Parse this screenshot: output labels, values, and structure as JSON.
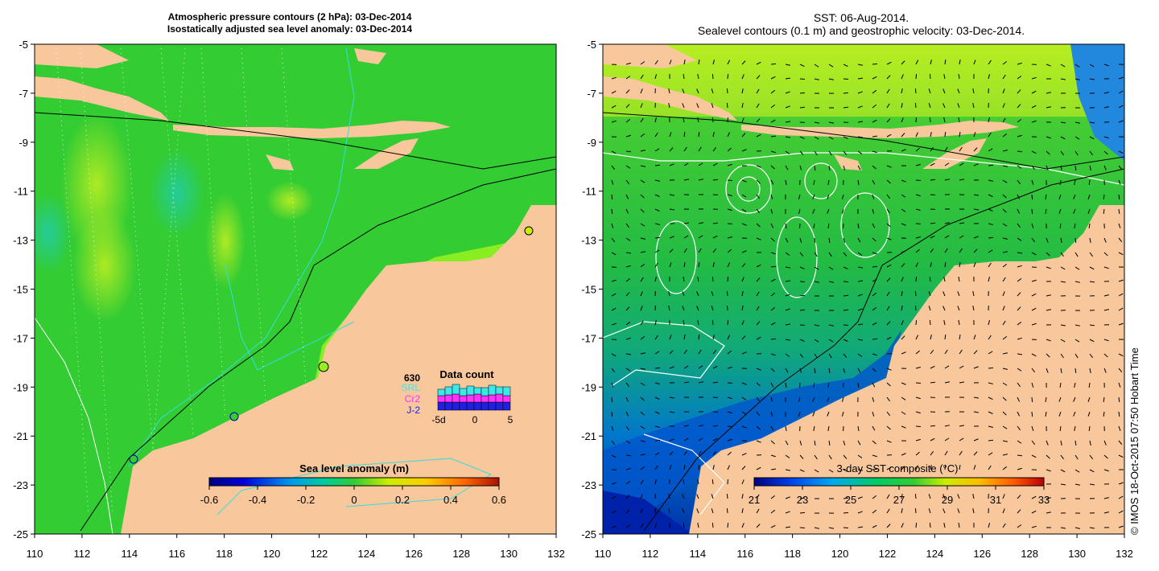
{
  "left_panel": {
    "title_line1": "Atmospheric pressure contours (2 hPa): 03-Dec-2014",
    "title_line2": "Isostatically adjusted sea level anomaly: 03-Dec-2014",
    "colorbar": {
      "label": "Sea level anomaly (m)",
      "ticks": [
        "-0.6",
        "-0.4",
        "-0.2",
        "0",
        "0.2",
        "0.4",
        "0.6"
      ]
    },
    "data_count": {
      "title": "Data count",
      "max_label": "630",
      "series": [
        {
          "name": "SRL",
          "color": "#3ee8e8"
        },
        {
          "name": "Cr2",
          "color": "#ff33ff"
        },
        {
          "name": "J-2",
          "color": "#2020e0"
        }
      ],
      "x_ticks": [
        "-5d",
        "0",
        "5"
      ]
    }
  },
  "right_panel": {
    "title_line1": "SST: 06-Aug-2014.",
    "title_line2": "Sealevel contours (0.1 m) and geostrophic velocity: 03-Dec-2014.",
    "colorbar": {
      "label": "3-day SST composite (°C)",
      "ticks": [
        "21",
        "23",
        "25",
        "27",
        "29",
        "31",
        "33"
      ]
    }
  },
  "axes": {
    "lon_ticks": [
      "110",
      "112",
      "114",
      "116",
      "118",
      "120",
      "122",
      "124",
      "126",
      "128",
      "130",
      "132"
    ],
    "lat_ticks": [
      "-5",
      "-7",
      "-9",
      "-11",
      "-13",
      "-15",
      "-17",
      "-19",
      "-21",
      "-23",
      "-25"
    ]
  },
  "credit": "© IMOS 18-Oct-2015 07:50 Hobart Time",
  "colors": {
    "land": "#f8c79b",
    "ocean_green": "#33cc33",
    "ocean_bright": "#88ee22",
    "coast_cyan": "#33dddd"
  }
}
